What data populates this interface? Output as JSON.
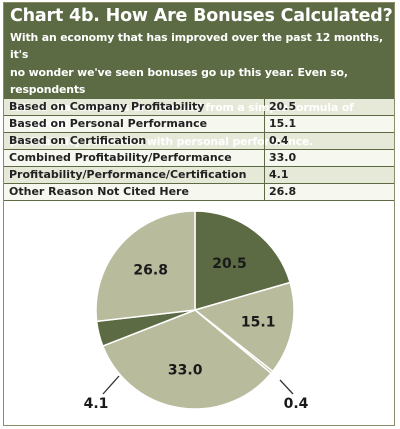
{
  "header": {
    "title": "Chart 4b. How Are Bonuses Calculated?",
    "desc_lines": [
      "With an economy that has improved over the past 12 months, it's",
      "no wonder we've seen bonuses go up this year. Even so, respondents",
      "tell us that bonuses are derived from a simple formula of corporate",
      "profitability combined with personal performance."
    ]
  },
  "colors": {
    "header_bg": "#5c6b43",
    "dark_slice": "#5c6b43",
    "light_slice": "#b9bb9d",
    "slice_border": "#ffffff"
  },
  "chart_data": {
    "type": "pie",
    "title": "Chart 4b. How Are Bonuses Calculated?",
    "categories": [
      "Based on Company Profitability",
      "Based on Personal Performance",
      "Based on Certification",
      "Combined Profitability/Performance",
      "Profitability/Performance/Certification",
      "Other Reason Not Cited Here"
    ],
    "values": [
      20.5,
      15.1,
      0.4,
      33.0,
      4.1,
      26.8
    ],
    "value_labels": [
      "20.5",
      "15.1",
      "0.4",
      "33.0",
      "4.1",
      "26.8"
    ],
    "legend": "table-above"
  }
}
